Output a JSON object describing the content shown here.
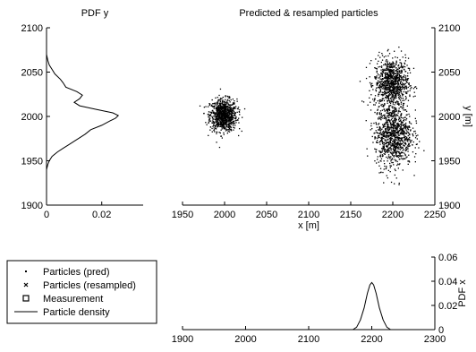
{
  "chart_data": [
    {
      "id": "pdf-y",
      "type": "line",
      "title": "PDF y",
      "xlabel": "",
      "ylabel": "",
      "xlim": [
        0,
        0.035
      ],
      "ylim": [
        1900,
        2100
      ],
      "xticks": [
        "0",
        "0.02"
      ],
      "xtick_values": [
        0,
        0.02
      ],
      "yticks": [
        "1900",
        "1950",
        "2000",
        "2050",
        "2100"
      ],
      "ytick_values": [
        1900,
        1950,
        2000,
        2050,
        2100
      ],
      "series": [
        {
          "points": [
            [
              0.0,
              1940
            ],
            [
              0.0005,
              1946
            ],
            [
              0.001,
              1950
            ],
            [
              0.002,
              1955
            ],
            [
              0.004,
              1960
            ],
            [
              0.006,
              1964
            ],
            [
              0.008,
              1968
            ],
            [
              0.01,
              1972
            ],
            [
              0.012,
              1976
            ],
            [
              0.014,
              1980
            ],
            [
              0.016,
              1985
            ],
            [
              0.02,
              1990
            ],
            [
              0.023,
              1995
            ],
            [
              0.025,
              1998
            ],
            [
              0.026,
              2001
            ],
            [
              0.024,
              2004
            ],
            [
              0.018,
              2008
            ],
            [
              0.012,
              2012
            ],
            [
              0.01,
              2016
            ],
            [
              0.012,
              2020
            ],
            [
              0.013,
              2024
            ],
            [
              0.011,
              2028
            ],
            [
              0.007,
              2033
            ],
            [
              0.006,
              2038
            ],
            [
              0.005,
              2042
            ],
            [
              0.003,
              2048
            ],
            [
              0.002,
              2053
            ],
            [
              0.001,
              2058
            ],
            [
              0.0005,
              2063
            ],
            [
              0.0,
              2070
            ]
          ]
        }
      ]
    },
    {
      "id": "particles",
      "type": "scatter",
      "title": "Predicted & resampled particles",
      "xlabel": "x [m]",
      "ylabel": "y [m]",
      "xlim": [
        1950,
        2250
      ],
      "ylim": [
        1900,
        2100
      ],
      "xticks": [
        "1950",
        "2000",
        "2050",
        "2100",
        "2150",
        "2200",
        "2250"
      ],
      "xtick_values": [
        1950,
        2000,
        2050,
        2100,
        2150,
        2200,
        2250
      ],
      "yticks": [
        "1900",
        "1950",
        "2000",
        "2050",
        "2100"
      ],
      "ytick_values": [
        1900,
        1950,
        2000,
        2050,
        2100
      ],
      "clusters": [
        {
          "name": "left",
          "cx": 1998,
          "cy": 2002,
          "sx": 8,
          "sy": 9,
          "n": 900
        },
        {
          "name": "right-upper",
          "cx": 2198,
          "cy": 2038,
          "sx": 10,
          "sy": 14,
          "n": 900
        },
        {
          "name": "right-lower",
          "cx": 2200,
          "cy": 1980,
          "sx": 11,
          "sy": 18,
          "n": 1000
        }
      ]
    },
    {
      "id": "pdf-x",
      "type": "line",
      "title": "",
      "xlabel": "",
      "ylabel": "PDF x",
      "xlim": [
        1900,
        2300
      ],
      "ylim": [
        0,
        0.06
      ],
      "xticks": [
        "1900",
        "2000",
        "2100",
        "2200",
        "2300"
      ],
      "xtick_values": [
        1900,
        2000,
        2100,
        2200,
        2300
      ],
      "yticks": [
        "0",
        "0.02",
        "0.04",
        "0.06"
      ],
      "ytick_values": [
        0,
        0.02,
        0.04,
        0.06
      ],
      "series": [
        {
          "points": [
            [
              2170,
              0.0
            ],
            [
              2176,
              0.002
            ],
            [
              2182,
              0.008
            ],
            [
              2188,
              0.018
            ],
            [
              2193,
              0.03
            ],
            [
              2197,
              0.037
            ],
            [
              2200,
              0.039
            ],
            [
              2203,
              0.037
            ],
            [
              2207,
              0.03
            ],
            [
              2212,
              0.018
            ],
            [
              2218,
              0.008
            ],
            [
              2224,
              0.002
            ],
            [
              2230,
              0.0
            ]
          ]
        }
      ]
    }
  ],
  "legend": {
    "entries": [
      {
        "label": "Particles (pred)",
        "marker": "dot"
      },
      {
        "label": "Particles (resampled)",
        "marker": "x"
      },
      {
        "label": "Measurement",
        "marker": "square"
      },
      {
        "label": "Particle density",
        "marker": "line"
      }
    ]
  }
}
